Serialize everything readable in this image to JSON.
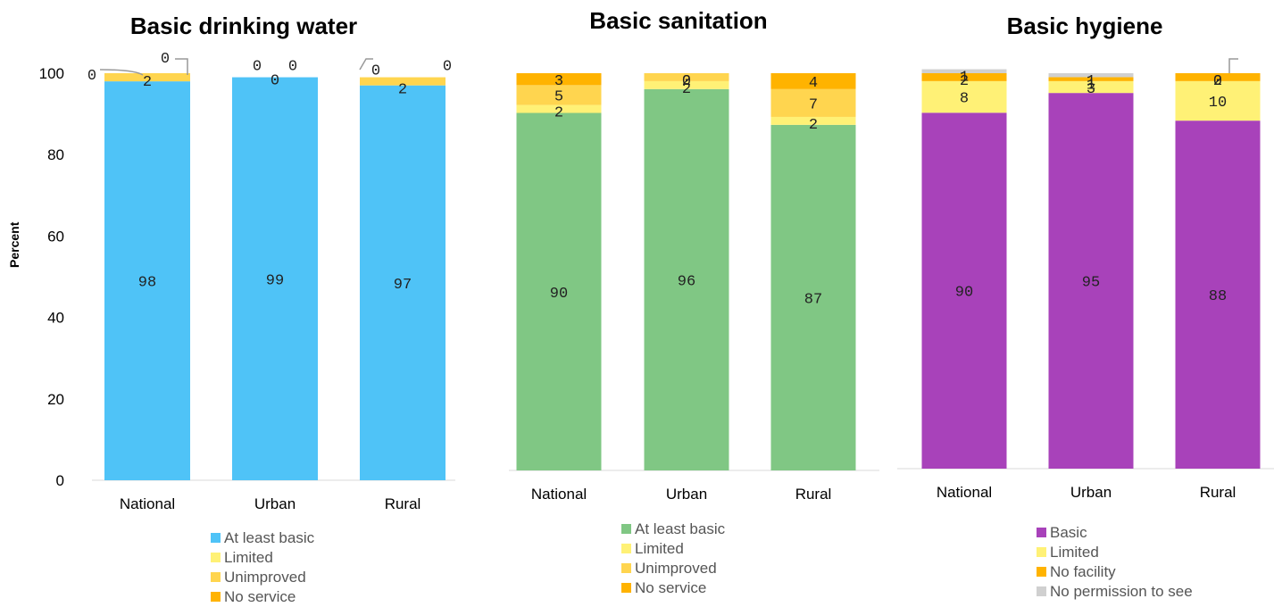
{
  "colors": {
    "blue": "#4FC3F7",
    "green": "#80C784",
    "purple": "#A842BA",
    "limited": "#FFF176",
    "unimproved": "#FFD54F",
    "noservice": "#FFB300",
    "nopermission": "#D0D0D0"
  },
  "y_axis_label": "Percent",
  "chart_data": [
    {
      "type": "bar",
      "stacked": true,
      "title": "Basic drinking water",
      "ylabel": "Percent",
      "ylim": [
        0,
        100
      ],
      "yticks": [
        "0",
        "20",
        "40",
        "60",
        "80",
        "100"
      ],
      "categories": [
        "National",
        "Urban",
        "Rural"
      ],
      "series": [
        {
          "name": "At least basic",
          "values": [
            98,
            99,
            97
          ],
          "labels": [
            "98",
            "99",
            "97"
          ]
        },
        {
          "name": "Limited",
          "values": [
            0,
            0,
            0
          ],
          "labels": [
            "0",
            "0",
            "0"
          ]
        },
        {
          "name": "Unimproved",
          "values": [
            2,
            0,
            2
          ],
          "labels": [
            "2",
            "0",
            "2"
          ]
        },
        {
          "name": "No service",
          "values": [
            0,
            0,
            0
          ],
          "labels": [
            "0",
            "0",
            "0"
          ]
        }
      ]
    },
    {
      "type": "bar",
      "stacked": true,
      "title": "Basic sanitation",
      "ylim": [
        0,
        100
      ],
      "categories": [
        "National",
        "Urban",
        "Rural"
      ],
      "series": [
        {
          "name": "At least basic",
          "values": [
            90,
            96,
            87
          ],
          "labels": [
            "90",
            "96",
            "87"
          ]
        },
        {
          "name": "Limited",
          "values": [
            2,
            2,
            2
          ],
          "labels": [
            "2",
            "2",
            "2"
          ]
        },
        {
          "name": "Unimproved",
          "values": [
            5,
            2,
            7
          ],
          "labels": [
            "5",
            "2",
            "7"
          ]
        },
        {
          "name": "No service",
          "values": [
            3,
            0,
            4
          ],
          "labels": [
            "3",
            "0",
            "4"
          ]
        }
      ]
    },
    {
      "type": "bar",
      "stacked": true,
      "title": "Basic hygiene",
      "ylim": [
        0,
        100
      ],
      "categories": [
        "National",
        "Urban",
        "Rural"
      ],
      "series": [
        {
          "name": "Basic",
          "values": [
            90,
            95,
            88
          ],
          "labels": [
            "90",
            "95",
            "88"
          ]
        },
        {
          "name": "Limited",
          "values": [
            8,
            3,
            10
          ],
          "labels": [
            "8",
            "3",
            "10"
          ]
        },
        {
          "name": "No facility",
          "values": [
            2,
            1,
            2
          ],
          "labels": [
            "2",
            "1",
            "2"
          ]
        },
        {
          "name": "No permission to see",
          "values": [
            1,
            1,
            0
          ],
          "labels": [
            "1",
            "1",
            "0"
          ]
        }
      ]
    }
  ]
}
